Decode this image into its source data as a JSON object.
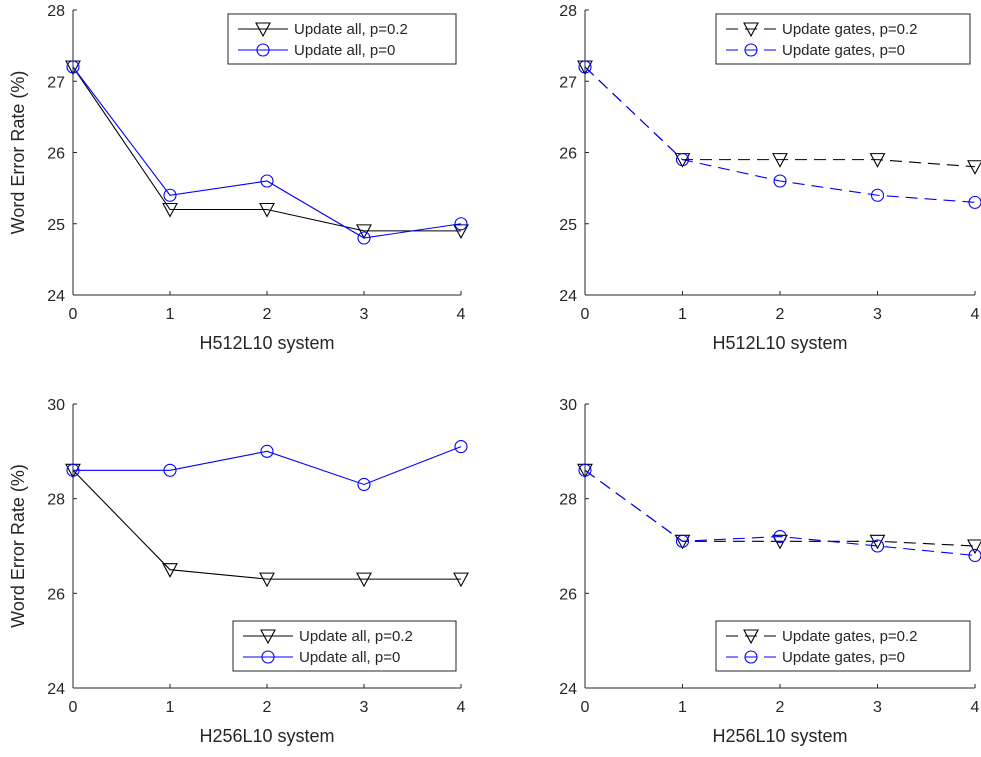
{
  "chart_data": [
    {
      "type": "line",
      "xlabel": "H512L10 system",
      "ylabel": "Word Error Rate (%)",
      "xlim": [
        0,
        4
      ],
      "ylim": [
        24,
        28
      ],
      "xticks": [
        "0",
        "1",
        "2",
        "3",
        "4"
      ],
      "yticks": [
        "24",
        "25",
        "26",
        "27",
        "28"
      ],
      "legend_position": "top-right",
      "x": [
        0,
        1,
        2,
        3,
        4
      ],
      "series": [
        {
          "name": "Update all, p=0.2",
          "values": [
            27.2,
            25.2,
            25.2,
            24.9,
            24.9
          ],
          "color": "#000000",
          "marker": "triangle-down",
          "dash": "solid"
        },
        {
          "name": "Update all, p=0",
          "values": [
            27.2,
            25.4,
            25.6,
            24.8,
            25.0
          ],
          "color": "#0000ff",
          "marker": "circle",
          "dash": "solid"
        }
      ]
    },
    {
      "type": "line",
      "xlabel": "H512L10 system",
      "ylabel": "",
      "xlim": [
        0,
        4
      ],
      "ylim": [
        24,
        28
      ],
      "xticks": [
        "0",
        "1",
        "2",
        "3",
        "4"
      ],
      "yticks": [
        "24",
        "25",
        "26",
        "27",
        "28"
      ],
      "legend_position": "top-right",
      "x": [
        0,
        1,
        2,
        3,
        4
      ],
      "series": [
        {
          "name": "Update gates, p=0.2",
          "values": [
            27.2,
            25.9,
            25.9,
            25.9,
            25.8
          ],
          "color": "#000000",
          "marker": "triangle-down",
          "dash": "dashed"
        },
        {
          "name": "Update gates, p=0",
          "values": [
            27.2,
            25.9,
            25.6,
            25.4,
            25.3
          ],
          "color": "#0000ff",
          "marker": "circle",
          "dash": "dashed"
        }
      ]
    },
    {
      "type": "line",
      "xlabel": "H256L10 system",
      "ylabel": "Word Error Rate (%)",
      "xlim": [
        0,
        4
      ],
      "ylim": [
        24,
        30
      ],
      "xticks": [
        "0",
        "1",
        "2",
        "3",
        "4"
      ],
      "yticks": [
        "24",
        "26",
        "28",
        "30"
      ],
      "legend_position": "bottom-right",
      "x": [
        0,
        1,
        2,
        3,
        4
      ],
      "series": [
        {
          "name": "Update all, p=0.2",
          "values": [
            28.6,
            26.5,
            26.3,
            26.3,
            26.3
          ],
          "color": "#000000",
          "marker": "triangle-down",
          "dash": "solid"
        },
        {
          "name": "Update all, p=0",
          "values": [
            28.6,
            28.6,
            29.0,
            28.3,
            29.1
          ],
          "color": "#0000ff",
          "marker": "circle",
          "dash": "solid"
        }
      ]
    },
    {
      "type": "line",
      "xlabel": "H256L10 system",
      "ylabel": "",
      "xlim": [
        0,
        4
      ],
      "ylim": [
        24,
        30
      ],
      "xticks": [
        "0",
        "1",
        "2",
        "3",
        "4"
      ],
      "yticks": [
        "24",
        "26",
        "28",
        "30"
      ],
      "legend_position": "bottom-right",
      "x": [
        0,
        1,
        2,
        3,
        4
      ],
      "series": [
        {
          "name": "Update gates, p=0.2",
          "values": [
            28.6,
            27.1,
            27.1,
            27.1,
            27.0
          ],
          "color": "#000000",
          "marker": "triangle-down",
          "dash": "dashed"
        },
        {
          "name": "Update gates, p=0",
          "values": [
            28.6,
            27.1,
            27.2,
            27.0,
            26.8
          ],
          "color": "#0000ff",
          "marker": "circle",
          "dash": "dashed"
        }
      ]
    }
  ]
}
